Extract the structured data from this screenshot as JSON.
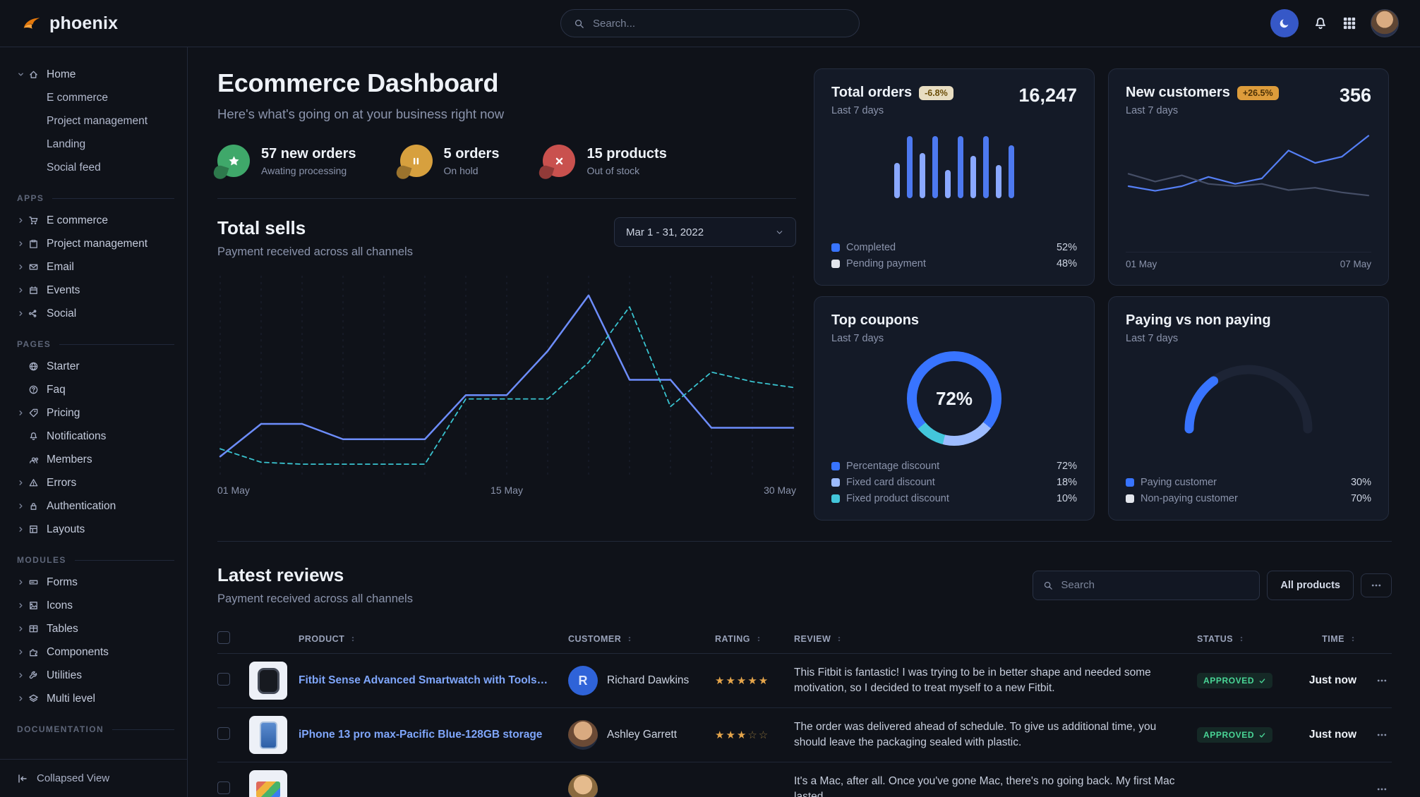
{
  "navbar": {
    "brand": "phoenix",
    "search_placeholder": "Search...",
    "icons": [
      "moon",
      "bell",
      "grid-9"
    ]
  },
  "sidebar": {
    "groups": [
      {
        "items": [
          {
            "label": "Home",
            "icon": "house",
            "chevron": "down",
            "children": [
              "E commerce",
              "Project management",
              "Landing",
              "Social feed"
            ]
          }
        ]
      },
      {
        "title": "APPS",
        "items": [
          {
            "label": "E commerce",
            "icon": "cart",
            "chevron": "right"
          },
          {
            "label": "Project management",
            "icon": "clipboard",
            "chevron": "right"
          },
          {
            "label": "Email",
            "icon": "envelope",
            "chevron": "right"
          },
          {
            "label": "Events",
            "icon": "calendar",
            "chevron": "right"
          },
          {
            "label": "Social",
            "icon": "share",
            "chevron": "right"
          }
        ]
      },
      {
        "title": "PAGES",
        "items": [
          {
            "label": "Starter",
            "icon": "globe"
          },
          {
            "label": "Faq",
            "icon": "question"
          },
          {
            "label": "Pricing",
            "icon": "tag",
            "chevron": "right"
          },
          {
            "label": "Notifications",
            "icon": "bell"
          },
          {
            "label": "Members",
            "icon": "users"
          },
          {
            "label": "Errors",
            "icon": "alert",
            "chevron": "right"
          },
          {
            "label": "Authentication",
            "icon": "lock",
            "chevron": "right"
          },
          {
            "label": "Layouts",
            "icon": "layout",
            "chevron": "right"
          }
        ]
      },
      {
        "title": "MODULES",
        "items": [
          {
            "label": "Forms",
            "icon": "form",
            "chevron": "right"
          },
          {
            "label": "Icons",
            "icon": "image",
            "chevron": "right"
          },
          {
            "label": "Tables",
            "icon": "table",
            "chevron": "right"
          },
          {
            "label": "Components",
            "icon": "puzzle",
            "chevron": "right"
          },
          {
            "label": "Utilities",
            "icon": "wrench",
            "chevron": "right"
          },
          {
            "label": "Multi level",
            "icon": "layers",
            "chevron": "right"
          }
        ]
      },
      {
        "title": "DOCUMENTATION",
        "items": []
      }
    ],
    "footer": "Collapsed View"
  },
  "header": {
    "title": "Ecommerce Dashboard",
    "subtitle": "Here's what's going on at your business right now"
  },
  "stats": [
    {
      "icon": "star",
      "color": "#3fa86a",
      "value": "57 new orders",
      "caption": "Awating processing"
    },
    {
      "icon": "pause",
      "color": "#d7a03e",
      "value": "5 orders",
      "caption": "On hold"
    },
    {
      "icon": "x",
      "color": "#c9514e",
      "value": "15 products",
      "caption": "Out of stock"
    }
  ],
  "total_sells": {
    "title": "Total sells",
    "subtitle": "Payment received across all channels",
    "date_range": "Mar 1 - 31, 2022",
    "x_ticks": [
      "01 May",
      "15 May",
      "30 May"
    ]
  },
  "cards": {
    "total_orders": {
      "title": "Total orders",
      "badge": "-6.8%",
      "period": "Last 7 days",
      "value": "16,247",
      "legend": [
        {
          "label": "Completed",
          "value": "52%",
          "color": "#3874ff"
        },
        {
          "label": "Pending payment",
          "value": "48%",
          "color": "#e3e6ed"
        }
      ]
    },
    "new_customers": {
      "title": "New customers",
      "badge": "+26.5%",
      "period": "Last 7 days",
      "value": "356",
      "x_ticks": [
        "01 May",
        "07 May"
      ]
    },
    "top_coupons": {
      "title": "Top coupons",
      "period": "Last 7 days",
      "center_label": "72%",
      "legend": [
        {
          "label": "Percentage discount",
          "value": "72%",
          "color": "#3874ff"
        },
        {
          "label": "Fixed card discount",
          "value": "18%",
          "color": "#9dbcff"
        },
        {
          "label": "Fixed product discount",
          "value": "10%",
          "color": "#43c6db"
        }
      ]
    },
    "paying": {
      "title": "Paying vs non paying",
      "period": "Last 7 days",
      "legend": [
        {
          "label": "Paying customer",
          "value": "30%",
          "color": "#3874ff"
        },
        {
          "label": "Non-paying customer",
          "value": "70%",
          "color": "#e3e6ed"
        }
      ]
    }
  },
  "reviews": {
    "title": "Latest reviews",
    "subtitle": "Payment received across all channels",
    "search_placeholder": "Search",
    "filter_label": "All products",
    "columns": [
      "PRODUCT",
      "CUSTOMER",
      "RATING",
      "REVIEW",
      "STATUS",
      "TIME"
    ],
    "rows": [
      {
        "product": "Fitbit Sense Advanced Smartwatch with Tools fo...",
        "thumb": "watch",
        "customer": "Richard Dawkins",
        "avatar_type": "initial",
        "avatar_initial": "R",
        "rating": 5,
        "review": "This Fitbit is fantastic! I was trying to be in better shape and needed some motivation, so I decided to treat myself to a new Fitbit.",
        "status": "APPROVED",
        "time": "Just now"
      },
      {
        "product": "iPhone 13 pro max-Pacific Blue-128GB storage",
        "thumb": "phone",
        "customer": "Ashley Garrett",
        "avatar_type": "photo",
        "avatar_initial": "",
        "rating": 3,
        "review": "The order was delivered ahead of schedule. To give us additional time, you should leave the packaging sealed with plastic.",
        "status": "APPROVED",
        "time": "Just now"
      },
      {
        "product": "",
        "thumb": "laptop",
        "customer": "",
        "avatar_type": "photo2",
        "avatar_initial": "",
        "rating": 0,
        "review": "It's a Mac, after all. Once you've gone Mac, there's no going back. My first Mac lasted...",
        "status": "",
        "time": ""
      }
    ]
  },
  "chart_data": [
    {
      "id": "total-sells",
      "type": "line",
      "title": "Total sells",
      "x_ticks": [
        "01 May",
        "15 May",
        "30 May"
      ],
      "ylim": [
        0,
        100
      ],
      "grid": "vertical-dashed",
      "series": [
        {
          "name": "series-1",
          "style": "solid",
          "color": "#6d8dfc",
          "values": [
            8,
            25,
            25,
            17,
            17,
            17,
            40,
            40,
            63,
            92,
            48,
            48,
            23,
            23,
            23
          ]
        },
        {
          "name": "series-2",
          "style": "dashed",
          "color": "#39c3cf",
          "values": [
            12,
            5,
            4,
            4,
            4,
            4,
            38,
            38,
            38,
            57,
            86,
            34,
            52,
            47,
            44
          ]
        }
      ]
    },
    {
      "id": "total-orders",
      "type": "bar",
      "values": [
        48,
        85,
        62,
        85,
        38,
        85,
        58,
        85,
        45,
        72
      ],
      "colors": [
        "#8aa8ff",
        "#4d79f0"
      ],
      "ylim": [
        0,
        100
      ]
    },
    {
      "id": "new-customers",
      "type": "line",
      "x_ticks": [
        "01 May",
        "07 May"
      ],
      "ylim": [
        0,
        100
      ],
      "series": [
        {
          "name": "customers",
          "style": "solid",
          "color": "#557ff5",
          "values": [
            30,
            24,
            30,
            42,
            33,
            40,
            76,
            60,
            68,
            95
          ]
        },
        {
          "name": "baseline",
          "style": "solid",
          "color": "#454e66",
          "values": [
            46,
            36,
            44,
            33,
            30,
            33,
            25,
            28,
            22,
            18
          ]
        }
      ]
    },
    {
      "id": "top-coupons",
      "type": "donut",
      "values": [
        72,
        18,
        10
      ],
      "colors": [
        "#3874ff",
        "#9dbcff",
        "#43c6db"
      ],
      "center": "72%"
    },
    {
      "id": "paying-gauge",
      "type": "gauge",
      "value": 30,
      "color": "#3874ff",
      "track": "#1d2435"
    }
  ]
}
